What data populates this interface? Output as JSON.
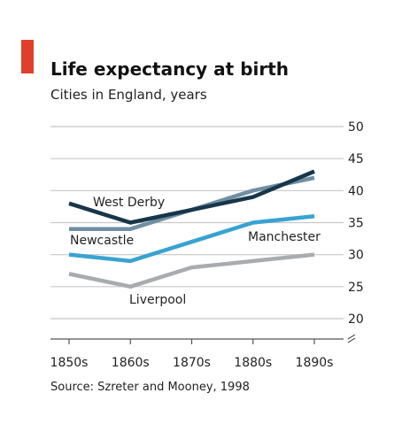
{
  "chart_data": {
    "type": "line",
    "title": "Life expectancy at birth",
    "subtitle": "Cities in England, years",
    "source": "Source: Szreter and Mooney, 1998",
    "categories": [
      "1850s",
      "1860s",
      "1870s",
      "1880s",
      "1890s"
    ],
    "ylim": [
      20,
      50
    ],
    "yticks": [
      20,
      25,
      30,
      35,
      40,
      45,
      50
    ],
    "axis_break": true,
    "grid": true,
    "series": [
      {
        "name": "West Derby",
        "values": [
          38,
          35,
          37,
          39,
          43
        ],
        "color": "#17364a"
      },
      {
        "name": "Newcastle",
        "values": [
          34,
          34,
          37,
          40,
          42
        ],
        "color": "#6f8fa3"
      },
      {
        "name": "Manchester",
        "values": [
          30,
          29,
          32,
          35,
          36
        ],
        "color": "#38a3d1"
      },
      {
        "name": "Liverpool",
        "values": [
          27,
          25,
          28,
          29,
          30
        ],
        "color": "#a9acae"
      }
    ],
    "accent_color": "#e0402b"
  }
}
